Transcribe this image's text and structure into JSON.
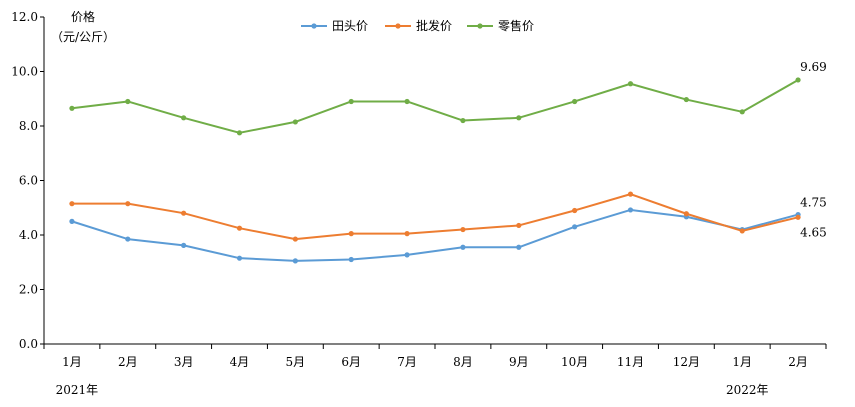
{
  "chart_data": {
    "type": "line",
    "ylabel_line1": "价格",
    "ylabel_line2": "（元/公斤）",
    "ylim": [
      0,
      12
    ],
    "yticks": [
      "0.0",
      "2.0",
      "4.0",
      "6.0",
      "8.0",
      "10.0",
      "12.0"
    ],
    "categories": [
      "1月",
      "2月",
      "3月",
      "4月",
      "5月",
      "6月",
      "7月",
      "8月",
      "9月",
      "10月",
      "11月",
      "12月",
      "1月",
      "2月"
    ],
    "year_labels": [
      {
        "text": "2021年",
        "index": 0
      },
      {
        "text": "2022年",
        "index": 12
      }
    ],
    "grid": false,
    "legend_position": "top-center",
    "series": [
      {
        "name": "田头价",
        "color": "#5b9bd5",
        "values": [
          4.5,
          3.85,
          3.62,
          3.15,
          3.05,
          3.1,
          3.27,
          3.55,
          3.55,
          4.3,
          4.92,
          4.67,
          4.2,
          4.75
        ]
      },
      {
        "name": "批发价",
        "color": "#ed7d31",
        "values": [
          5.15,
          5.15,
          4.8,
          4.25,
          3.85,
          4.05,
          4.05,
          4.2,
          4.35,
          4.9,
          5.5,
          4.78,
          4.15,
          4.65
        ]
      },
      {
        "name": "零售价",
        "color": "#70ad47",
        "values": [
          8.65,
          8.9,
          8.3,
          7.75,
          8.15,
          8.9,
          8.9,
          8.2,
          8.3,
          8.9,
          9.55,
          8.97,
          8.52,
          9.69
        ]
      }
    ],
    "annotations": [
      {
        "series": 2,
        "index": 13,
        "text": "9.69"
      },
      {
        "series": 0,
        "index": 13,
        "text": "4.75"
      },
      {
        "series": 1,
        "index": 13,
        "text": "4.65"
      }
    ]
  }
}
